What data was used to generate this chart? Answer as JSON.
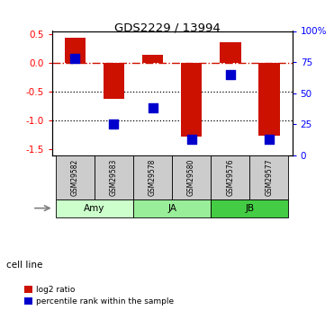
{
  "title": "GDS2229 / 13994",
  "samples": [
    "GSM29582",
    "GSM29583",
    "GSM29578",
    "GSM29580",
    "GSM29576",
    "GSM29577"
  ],
  "groups": [
    {
      "name": "Amy",
      "start": 0,
      "end": 1,
      "color": "#ccffcc"
    },
    {
      "name": "JA",
      "start": 2,
      "end": 3,
      "color": "#99ee99"
    },
    {
      "name": "JB",
      "start": 4,
      "end": 5,
      "color": "#44cc44"
    }
  ],
  "log2_ratio": [
    0.43,
    -0.62,
    0.13,
    -1.28,
    0.36,
    -1.27
  ],
  "pct_rank_vals": [
    78,
    25,
    38,
    13,
    65,
    13
  ],
  "ylim_left": [
    -1.6,
    0.55
  ],
  "ylim_right": [
    0,
    100
  ],
  "bar_color": "#cc1100",
  "dot_color": "#0000cc",
  "dotted_lines": [
    -0.5,
    -1.0
  ],
  "left_ticks": [
    -1.5,
    -1.0,
    -0.5,
    0.0,
    0.5
  ],
  "right_ticks": [
    0,
    25,
    50,
    75,
    100
  ],
  "right_tick_labels": [
    "0",
    "25",
    "50",
    "75",
    "100%"
  ],
  "legend_items": [
    "log2 ratio",
    "percentile rank within the sample"
  ],
  "legend_colors": [
    "#cc1100",
    "#0000cc"
  ],
  "sample_box_color": "#cccccc",
  "bar_width": 0.55
}
